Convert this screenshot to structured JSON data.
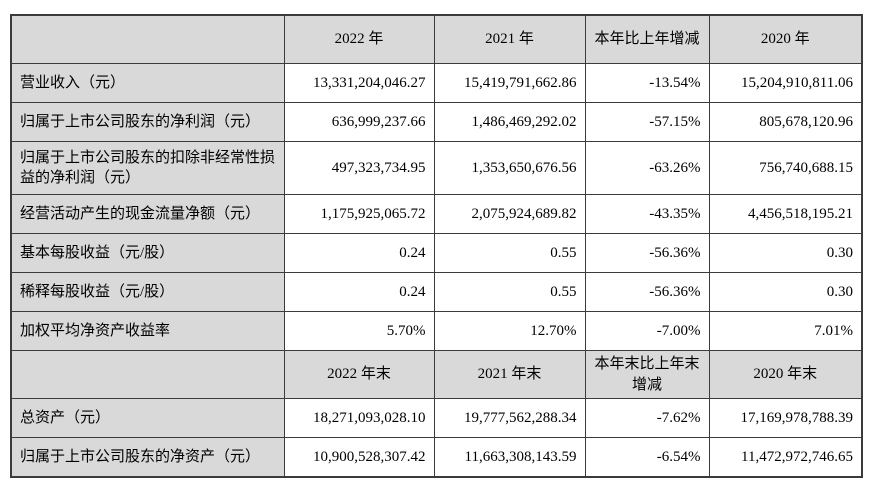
{
  "colors": {
    "header_and_label_bg": "#d9d9d9",
    "data_cell_bg": "#ffffff",
    "grid_border": "#3b3b3b",
    "text": "#000000"
  },
  "table": {
    "sections": [
      {
        "header": {
          "label": "",
          "cols": [
            "2022 年",
            "2021 年",
            "本年比上年增减",
            "2020 年"
          ]
        },
        "rows": [
          {
            "label": "营业收入（元）",
            "values": [
              "13,331,204,046.27",
              "15,419,791,662.86",
              "-13.54%",
              "15,204,910,811.06"
            ]
          },
          {
            "label": "归属于上市公司股东的净利润（元）",
            "values": [
              "636,999,237.66",
              "1,486,469,292.02",
              "-57.15%",
              "805,678,120.96"
            ]
          },
          {
            "label": "归属于上市公司股东的扣除非经常性损益的净利润（元）",
            "values": [
              "497,323,734.95",
              "1,353,650,676.56",
              "-63.26%",
              "756,740,688.15"
            ]
          },
          {
            "label": "经营活动产生的现金流量净额（元）",
            "values": [
              "1,175,925,065.72",
              "2,075,924,689.82",
              "-43.35%",
              "4,456,518,195.21"
            ]
          },
          {
            "label": "基本每股收益（元/股）",
            "values": [
              "0.24",
              "0.55",
              "-56.36%",
              "0.30"
            ]
          },
          {
            "label": "稀释每股收益（元/股）",
            "values": [
              "0.24",
              "0.55",
              "-56.36%",
              "0.30"
            ]
          },
          {
            "label": "加权平均净资产收益率",
            "values": [
              "5.70%",
              "12.70%",
              "-7.00%",
              "7.01%"
            ]
          }
        ]
      },
      {
        "header": {
          "label": "",
          "cols": [
            "2022 年末",
            "2021 年末",
            "本年末比上年末增减",
            "2020 年末"
          ]
        },
        "rows": [
          {
            "label": "总资产（元）",
            "values": [
              "18,271,093,028.10",
              "19,777,562,288.34",
              "-7.62%",
              "17,169,978,788.39"
            ]
          },
          {
            "label": "归属于上市公司股东的净资产（元）",
            "values": [
              "10,900,528,307.42",
              "11,663,308,143.59",
              "-6.54%",
              "11,472,972,746.65"
            ]
          }
        ]
      }
    ]
  }
}
